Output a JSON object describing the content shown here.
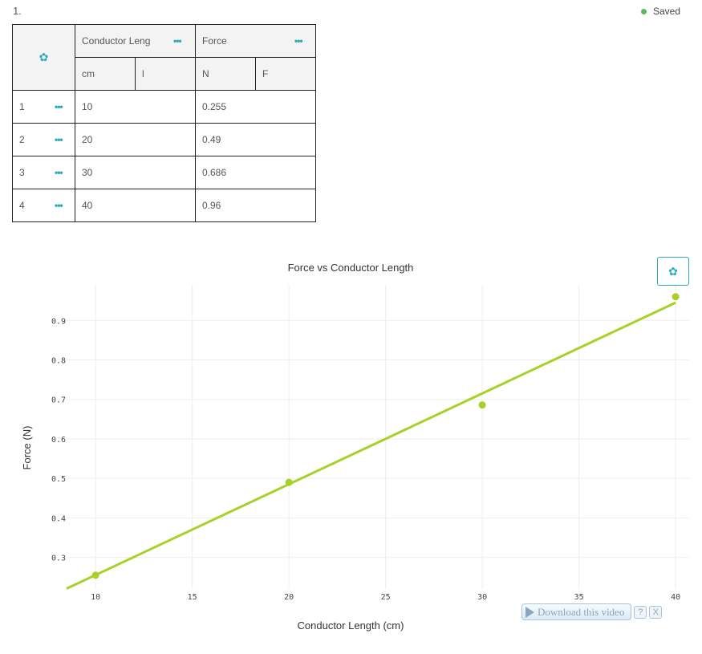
{
  "question_number": "1.",
  "status": {
    "label": "Saved",
    "color": "#5cb85c"
  },
  "table": {
    "settings_icon": "gear-icon",
    "columns": [
      {
        "name": "Conductor Leng",
        "unit": "cm",
        "symbol": "l"
      },
      {
        "name": "Force",
        "unit": "N",
        "symbol": "F"
      }
    ],
    "rows": [
      {
        "index": "1",
        "values": [
          "10",
          "0.255"
        ]
      },
      {
        "index": "2",
        "values": [
          "20",
          "0.49"
        ]
      },
      {
        "index": "3",
        "values": [
          "30",
          "0.686"
        ]
      },
      {
        "index": "4",
        "values": [
          "40",
          "0.96"
        ]
      }
    ]
  },
  "chart_settings_icon": "gear-icon",
  "accent_color": "#2aabb8",
  "series_color": "#a7d129",
  "chart_data": {
    "type": "scatter",
    "title": "Force vs Conductor Length",
    "xlabel": "Conductor Length (cm)",
    "ylabel": "Force (N)",
    "x": [
      10,
      20,
      30,
      40
    ],
    "y": [
      0.255,
      0.49,
      0.686,
      0.96
    ],
    "trendline": {
      "type": "linear",
      "x_range": [
        8.5,
        40
      ],
      "y_range": [
        0.221,
        0.945
      ]
    },
    "xlim": [
      8.5,
      40.7
    ],
    "ylim": [
      0.22,
      0.99
    ],
    "xticks": [
      10,
      15,
      20,
      25,
      30,
      35,
      40
    ],
    "yticks": [
      0.3,
      0.4,
      0.5,
      0.6,
      0.7,
      0.8,
      0.9
    ],
    "grid": true
  },
  "video_overlay": {
    "button_label": "Download this video",
    "help_label": "?",
    "close_label": "X"
  }
}
